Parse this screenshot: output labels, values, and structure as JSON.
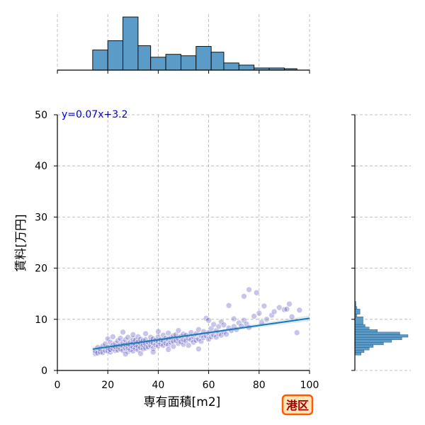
{
  "chart_data": {
    "type": "scatter",
    "title": "",
    "xlabel": "専有面積[m2]",
    "ylabel": "賃料[万円]",
    "xlim": [
      0,
      100
    ],
    "ylim": [
      0,
      50
    ],
    "x_ticks": [
      0,
      20,
      40,
      60,
      80,
      100
    ],
    "y_ticks": [
      0,
      10,
      20,
      30,
      40,
      50
    ],
    "grid": true,
    "regression": {
      "label": "y=0.07x+3.2",
      "slope": 0.07,
      "intercept": 3.2,
      "x_range": [
        14,
        100
      ],
      "color": "#1f77b4"
    },
    "points_color": "#3a2fb5",
    "badge": "港区",
    "badge_colors": {
      "fill": "#fde3b8",
      "stroke": "#ff5a00",
      "text": "#a30000"
    },
    "histogram_color": "#5b9bc8",
    "x_hist": {
      "bin_edges": [
        14,
        20,
        26,
        32,
        37,
        43,
        49,
        55,
        61,
        66,
        72,
        78,
        84,
        90,
        95
      ],
      "counts": [
        28,
        41,
        74,
        34,
        18,
        22,
        20,
        33,
        25,
        10,
        7,
        3,
        3,
        2
      ]
    },
    "y_hist": {
      "bin_edges": [
        3.0,
        3.5,
        4.0,
        4.5,
        5.0,
        5.5,
        6.0,
        6.5,
        7.0,
        7.5,
        8.0,
        8.5,
        9.0,
        10.5,
        11.0,
        12.0,
        12.5,
        13.0,
        13.5
      ],
      "counts": [
        6,
        9,
        14,
        18,
        28,
        36,
        46,
        52,
        44,
        22,
        14,
        10,
        8,
        2,
        5,
        2,
        1,
        1
      ]
    },
    "points": [
      [
        15,
        3.3
      ],
      [
        15,
        3.8
      ],
      [
        16,
        3.4
      ],
      [
        16,
        4.5
      ],
      [
        17,
        3.6
      ],
      [
        17,
        4.2
      ],
      [
        18,
        3.5
      ],
      [
        18,
        4.8
      ],
      [
        19,
        3.9
      ],
      [
        19,
        5.2
      ],
      [
        20,
        3.8
      ],
      [
        20,
        4.5
      ],
      [
        20,
        6.2
      ],
      [
        21,
        3.6
      ],
      [
        21,
        4.1
      ],
      [
        21,
        5.5
      ],
      [
        22,
        4.3
      ],
      [
        22,
        4.9
      ],
      [
        22,
        6.6
      ],
      [
        23,
        3.9
      ],
      [
        23,
        4.6
      ],
      [
        23,
        5.3
      ],
      [
        24,
        4.0
      ],
      [
        24,
        4.7
      ],
      [
        24,
        5.8
      ],
      [
        25,
        4.2
      ],
      [
        25,
        5.0
      ],
      [
        25,
        6.3
      ],
      [
        26,
        3.9
      ],
      [
        26,
        4.8
      ],
      [
        26,
        5.5
      ],
      [
        26,
        7.5
      ],
      [
        27,
        4.4
      ],
      [
        27,
        5.1
      ],
      [
        27,
        6.0
      ],
      [
        28,
        3.7
      ],
      [
        28,
        4.5
      ],
      [
        28,
        5.2
      ],
      [
        28,
        6.5
      ],
      [
        29,
        4.1
      ],
      [
        29,
        4.9
      ],
      [
        29,
        5.6
      ],
      [
        30,
        3.8
      ],
      [
        30,
        4.6
      ],
      [
        30,
        5.4
      ],
      [
        30,
        6.2
      ],
      [
        30,
        7.0
      ],
      [
        31,
        4.3
      ],
      [
        31,
        5.0
      ],
      [
        31,
        5.9
      ],
      [
        32,
        4.0
      ],
      [
        32,
        4.8
      ],
      [
        32,
        5.6
      ],
      [
        32,
        6.6
      ],
      [
        33,
        4.5
      ],
      [
        33,
        5.3
      ],
      [
        33,
        6.1
      ],
      [
        34,
        4.2
      ],
      [
        34,
        5.0
      ],
      [
        34,
        5.8
      ],
      [
        35,
        4.4
      ],
      [
        35,
        5.2
      ],
      [
        35,
        6.0
      ],
      [
        35,
        7.2
      ],
      [
        36,
        4.6
      ],
      [
        36,
        5.5
      ],
      [
        37,
        4.9
      ],
      [
        37,
        5.7
      ],
      [
        37,
        6.5
      ],
      [
        38,
        4.3
      ],
      [
        38,
        5.4
      ],
      [
        38,
        6.2
      ],
      [
        39,
        5.0
      ],
      [
        39,
        5.9
      ],
      [
        40,
        4.8
      ],
      [
        40,
        5.6
      ],
      [
        40,
        6.6
      ],
      [
        40,
        7.6
      ],
      [
        41,
        5.2
      ],
      [
        41,
        6.0
      ],
      [
        42,
        4.9
      ],
      [
        42,
        5.8
      ],
      [
        42,
        6.9
      ],
      [
        43,
        5.3
      ],
      [
        43,
        6.3
      ],
      [
        44,
        5.0
      ],
      [
        44,
        6.1
      ],
      [
        44,
        7.3
      ],
      [
        45,
        5.5
      ],
      [
        45,
        6.4
      ],
      [
        46,
        4.7
      ],
      [
        46,
        5.7
      ],
      [
        46,
        6.8
      ],
      [
        47,
        5.9
      ],
      [
        47,
        7.0
      ],
      [
        48,
        5.3
      ],
      [
        48,
        6.2
      ],
      [
        48,
        7.8
      ],
      [
        49,
        5.6
      ],
      [
        49,
        6.7
      ],
      [
        50,
        5.1
      ],
      [
        50,
        6.0
      ],
      [
        50,
        7.1
      ],
      [
        51,
        5.8
      ],
      [
        51,
        6.9
      ],
      [
        52,
        4.9
      ],
      [
        52,
        6.3
      ],
      [
        53,
        6.0
      ],
      [
        53,
        7.4
      ],
      [
        54,
        5.5
      ],
      [
        54,
        6.6
      ],
      [
        55,
        5.9
      ],
      [
        55,
        7.2
      ],
      [
        56,
        6.2
      ],
      [
        56,
        8.0
      ],
      [
        57,
        5.7
      ],
      [
        57,
        6.9
      ],
      [
        58,
        6.4
      ],
      [
        58,
        7.6
      ],
      [
        59,
        6.8
      ],
      [
        59,
        10.2
      ],
      [
        60,
        6.1
      ],
      [
        60,
        7.4
      ],
      [
        60,
        9.8
      ],
      [
        61,
        6.6
      ],
      [
        61,
        8.2
      ],
      [
        62,
        7.0
      ],
      [
        62,
        9.0
      ],
      [
        63,
        6.5
      ],
      [
        63,
        7.8
      ],
      [
        64,
        7.2
      ],
      [
        64,
        8.6
      ],
      [
        65,
        6.9
      ],
      [
        65,
        9.5
      ],
      [
        66,
        7.5
      ],
      [
        66,
        8.9
      ],
      [
        67,
        7.1
      ],
      [
        68,
        8.3
      ],
      [
        68,
        12.7
      ],
      [
        69,
        7.8
      ],
      [
        70,
        8.6
      ],
      [
        70,
        10.1
      ],
      [
        71,
        8.0
      ],
      [
        72,
        9.3
      ],
      [
        73,
        8.7
      ],
      [
        74,
        14.5
      ],
      [
        74,
        9.8
      ],
      [
        75,
        9.1
      ],
      [
        76,
        15.8
      ],
      [
        76,
        8.4
      ],
      [
        78,
        10.6
      ],
      [
        79,
        15.2
      ],
      [
        80,
        11.2
      ],
      [
        81,
        9.4
      ],
      [
        82,
        12.6
      ],
      [
        83,
        10.0
      ],
      [
        85,
        10.8
      ],
      [
        86,
        11.5
      ],
      [
        88,
        12.3
      ],
      [
        90,
        11.9
      ],
      [
        91,
        12.0
      ],
      [
        92,
        13.0
      ],
      [
        93,
        10.5
      ],
      [
        95,
        7.4
      ],
      [
        96,
        11.8
      ],
      [
        56,
        4.2
      ],
      [
        44,
        4.1
      ],
      [
        38,
        3.6
      ],
      [
        27,
        3.2
      ],
      [
        33,
        3.3
      ]
    ]
  }
}
